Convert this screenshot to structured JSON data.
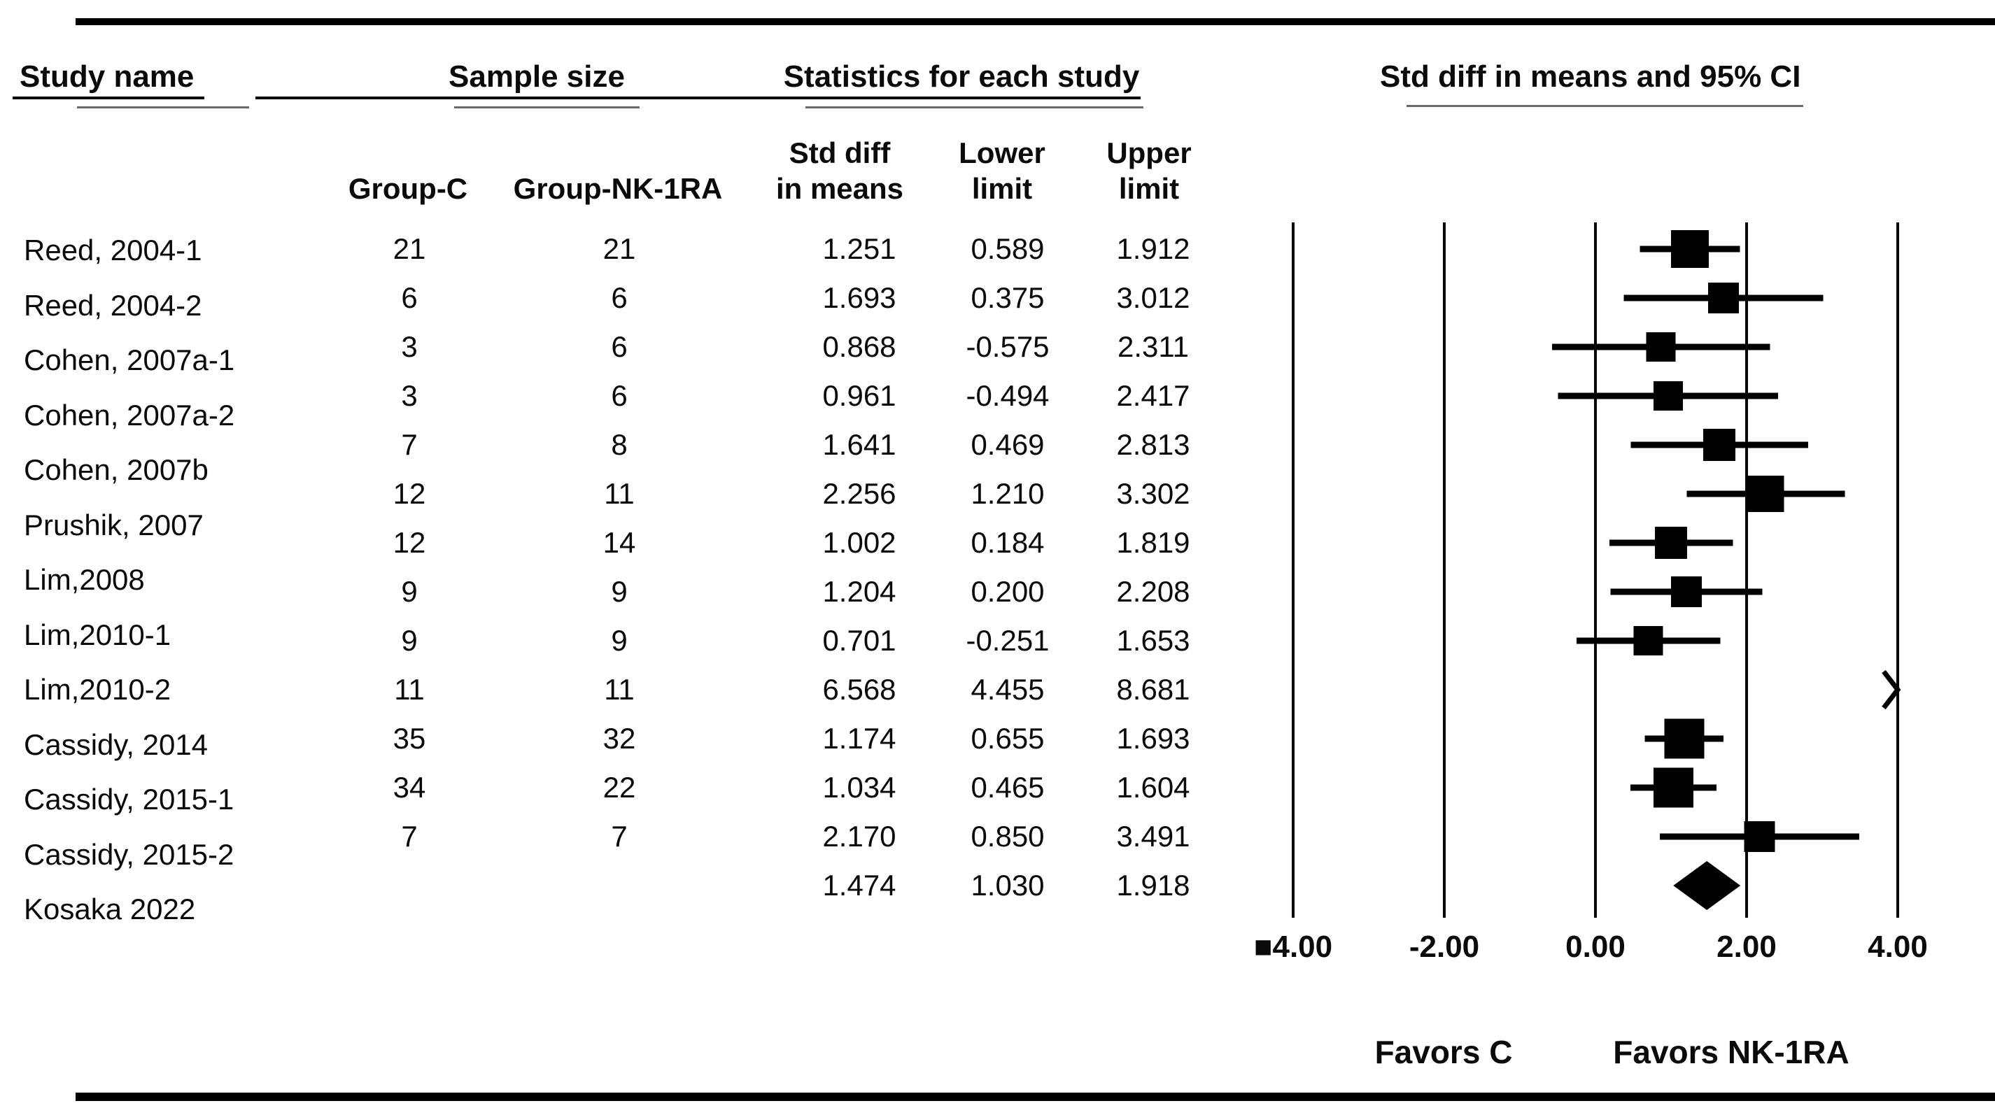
{
  "header": {
    "study_name": "Study name",
    "sample_size": "Sample size",
    "statistics": "Statistics for each study",
    "ci_title": "Std diff in means and 95% CI"
  },
  "subheaders": {
    "group_c": "Group-C",
    "group_nk": "Group-NK-1RA",
    "std_diff_line1": "Std diff",
    "std_diff_line2": "in means",
    "lower_line1": "Lower",
    "lower_line2": "limit",
    "upper_line1": "Upper",
    "upper_line2": "limit"
  },
  "studies": [
    {
      "name": "Reed, 2004-1",
      "group_c": "21",
      "group_nk": "21",
      "std_diff": "1.251",
      "lower": "0.589",
      "upper": "1.912"
    },
    {
      "name": "Reed, 2004-2",
      "group_c": "6",
      "group_nk": "6",
      "std_diff": "1.693",
      "lower": "0.375",
      "upper": "3.012"
    },
    {
      "name": "Cohen, 2007a-1",
      "group_c": "3",
      "group_nk": "6",
      "std_diff": "0.868",
      "lower": "-0.575",
      "upper": "2.311"
    },
    {
      "name": "Cohen, 2007a-2",
      "group_c": "3",
      "group_nk": "6",
      "std_diff": "0.961",
      "lower": "-0.494",
      "upper": "2.417"
    },
    {
      "name": "Cohen, 2007b",
      "group_c": "7",
      "group_nk": "8",
      "std_diff": "1.641",
      "lower": "0.469",
      "upper": "2.813"
    },
    {
      "name": "Prushik, 2007",
      "group_c": "12",
      "group_nk": "11",
      "std_diff": "2.256",
      "lower": "1.210",
      "upper": "3.302"
    },
    {
      "name": "Lim,2008",
      "group_c": "12",
      "group_nk": "14",
      "std_diff": "1.002",
      "lower": "0.184",
      "upper": "1.819"
    },
    {
      "name": "Lim,2010-1",
      "group_c": "9",
      "group_nk": "9",
      "std_diff": "1.204",
      "lower": "0.200",
      "upper": "2.208"
    },
    {
      "name": "Lim,2010-2",
      "group_c": "9",
      "group_nk": "9",
      "std_diff": "0.701",
      "lower": "-0.251",
      "upper": "1.653"
    },
    {
      "name": "Cassidy, 2014",
      "group_c": "11",
      "group_nk": "11",
      "std_diff": "6.568",
      "lower": "4.455",
      "upper": "8.681"
    },
    {
      "name": "Cassidy, 2015-1",
      "group_c": "35",
      "group_nk": "32",
      "std_diff": "1.174",
      "lower": "0.655",
      "upper": "1.693"
    },
    {
      "name": "Cassidy, 2015-2",
      "group_c": "34",
      "group_nk": "22",
      "std_diff": "1.034",
      "lower": "0.465",
      "upper": "1.604"
    },
    {
      "name": "Kosaka 2022",
      "group_c": "7",
      "group_nk": "7",
      "std_diff": "2.170",
      "lower": "0.850",
      "upper": "3.491"
    }
  ],
  "summary_row": {
    "std_diff": "1.474",
    "lower": "1.030",
    "upper": "1.918"
  },
  "chart_data": {
    "type": "forest",
    "title": "Std diff in means and 95% CI",
    "xlim": [
      -4,
      4
    ],
    "x_ticks": [
      -4,
      -2,
      0,
      2,
      4
    ],
    "x_tick_labels": [
      "■4.00",
      "-2.00",
      "0.00",
      "2.00",
      "4.00"
    ],
    "favors_left": "Favors C",
    "favors_right": "Favors NK-1RA",
    "points": [
      {
        "study": "Reed, 2004-1",
        "mean": 1.251,
        "lower": 0.589,
        "upper": 1.912,
        "marker_size": 54
      },
      {
        "study": "Reed, 2004-2",
        "mean": 1.693,
        "lower": 0.375,
        "upper": 3.012,
        "marker_size": 44
      },
      {
        "study": "Cohen, 2007a-1",
        "mean": 0.868,
        "lower": -0.575,
        "upper": 2.311,
        "marker_size": 42
      },
      {
        "study": "Cohen, 2007a-2",
        "mean": 0.961,
        "lower": -0.494,
        "upper": 2.417,
        "marker_size": 42
      },
      {
        "study": "Cohen, 2007b",
        "mean": 1.641,
        "lower": 0.469,
        "upper": 2.813,
        "marker_size": 46
      },
      {
        "study": "Prushik, 2007",
        "mean": 2.256,
        "lower": 1.21,
        "upper": 3.302,
        "marker_size": 52
      },
      {
        "study": "Lim,2008",
        "mean": 1.002,
        "lower": 0.184,
        "upper": 1.819,
        "marker_size": 46
      },
      {
        "study": "Lim,2010-1",
        "mean": 1.204,
        "lower": 0.2,
        "upper": 2.208,
        "marker_size": 44
      },
      {
        "study": "Lim,2010-2",
        "mean": 0.701,
        "lower": -0.251,
        "upper": 1.653,
        "marker_size": 42
      },
      {
        "study": "Cassidy, 2014",
        "mean": 6.568,
        "lower": 4.455,
        "upper": 8.681,
        "marker_size": 0,
        "offscale_right": true
      },
      {
        "study": "Cassidy, 2015-1",
        "mean": 1.174,
        "lower": 0.655,
        "upper": 1.693,
        "marker_size": 57
      },
      {
        "study": "Cassidy, 2015-2",
        "mean": 1.034,
        "lower": 0.465,
        "upper": 1.604,
        "marker_size": 57
      },
      {
        "study": "Kosaka 2022",
        "mean": 2.17,
        "lower": 0.85,
        "upper": 3.491,
        "marker_size": 44
      }
    ],
    "summary": {
      "mean": 1.474,
      "lower": 1.03,
      "upper": 1.918,
      "shape": "diamond"
    }
  }
}
